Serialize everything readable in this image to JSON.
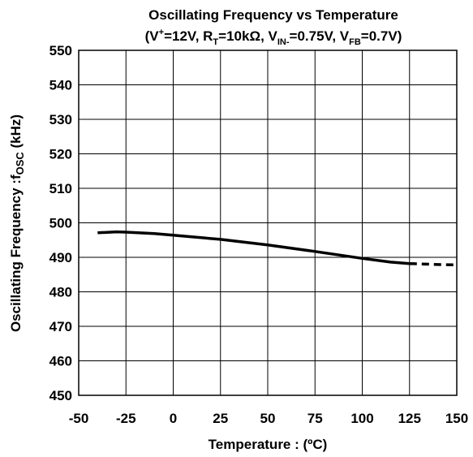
{
  "chart_data": {
    "type": "line",
    "title_line1": "Oscillating Frequency vs Temperature",
    "title_line2": {
      "p1": "(V",
      "sup1": "+",
      "p2": "=12V, R",
      "sub1": "T",
      "p3": "=10kΩ, V",
      "sub2": "IN-",
      "p4": "=0.75V, V",
      "sub3": "FB",
      "p5": "=0.7V)"
    },
    "xlabel": "Temperature : (ºC)",
    "ylabel": {
      "main": "Oscillating Frequency :f",
      "sub": "OSC",
      "unit": " (kHz)"
    },
    "xlim": [
      -50,
      150
    ],
    "ylim": [
      450,
      550
    ],
    "xticks": [
      "-50",
      "-25",
      "0",
      "25",
      "50",
      "75",
      "100",
      "125",
      "150"
    ],
    "yticks": [
      "450",
      "460",
      "470",
      "480",
      "490",
      "500",
      "510",
      "520",
      "530",
      "540",
      "550"
    ],
    "grid": true,
    "series": [
      {
        "style": "solid",
        "color": "#000000",
        "x": [
          -40,
          -30,
          -25,
          -10,
          0,
          25,
          50,
          75,
          100,
          115,
          125
        ],
        "y": [
          497.1,
          497.4,
          497.3,
          496.9,
          496.4,
          495.2,
          493.6,
          491.7,
          489.7,
          488.6,
          488.2
        ]
      },
      {
        "style": "dashed",
        "color": "#000000",
        "x": [
          125,
          140,
          150
        ],
        "y": [
          488.2,
          487.9,
          487.8
        ]
      }
    ]
  }
}
